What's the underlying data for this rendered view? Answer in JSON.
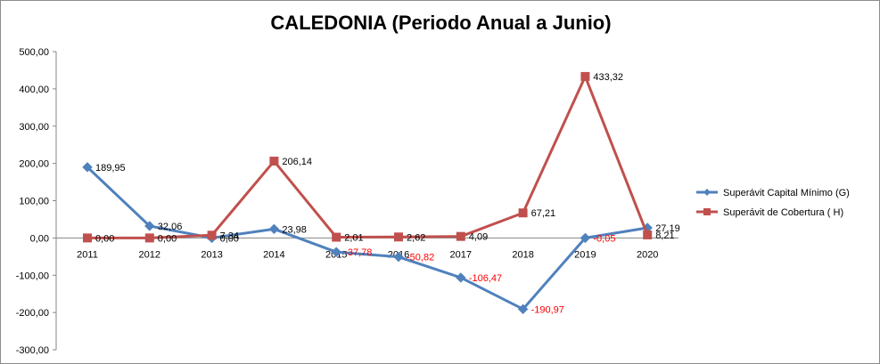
{
  "chart_data": {
    "type": "line",
    "title": "CALEDONIA (Periodo Anual a Junio)",
    "xlabel": "",
    "ylabel": "",
    "categories": [
      "2011",
      "2012",
      "2013",
      "2014",
      "2015",
      "2016",
      "2017",
      "2018",
      "2019",
      "2020"
    ],
    "ylim": [
      -300,
      500
    ],
    "yticks": [
      "500,00",
      "400,00",
      "300,00",
      "200,00",
      "100,00",
      "0,00",
      "-100,00",
      "-200,00",
      "-300,00"
    ],
    "ytick_values": [
      500,
      400,
      300,
      200,
      100,
      0,
      -100,
      -200,
      -300
    ],
    "grid": false,
    "legend_position": "right",
    "series": [
      {
        "name": "Superávit Capital Mínimo  (G)",
        "color": "#4f81bd",
        "marker": "diamond",
        "values": [
          189.95,
          32.06,
          0.0,
          23.98,
          -37.78,
          -50.82,
          -106.47,
          -190.97,
          -0.05,
          27.19
        ],
        "labels": [
          "189,95",
          "32,06",
          "0,00",
          "23,98",
          "-37,78",
          "-50,82",
          "-106,47",
          "-190,97",
          "-0,05",
          "27,19"
        ]
      },
      {
        "name": "Superávit de Cobertura ( H)",
        "color": "#c0504d",
        "marker": "square",
        "values": [
          0.0,
          0.0,
          7.34,
          206.14,
          2.01,
          2.62,
          4.09,
          67.21,
          433.32,
          8.21
        ],
        "labels": [
          "0,00",
          "0,00",
          "7,34",
          "206,14",
          "2,01",
          "2,62",
          "4,09",
          "67,21",
          "433,32",
          "8,21"
        ]
      }
    ],
    "negative_label_color": "#ff0000",
    "label_color": "#000000"
  }
}
